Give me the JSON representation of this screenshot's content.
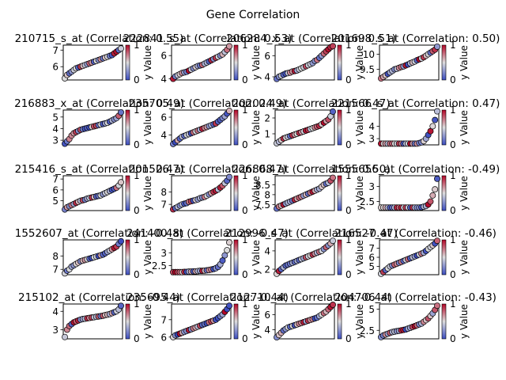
{
  "figure": {
    "suptitle": "Gene Correlation"
  },
  "colorbar": {
    "label": "y Value",
    "ticks": [
      "0",
      "1"
    ]
  },
  "chart_data": [
    {
      "type": "scatter",
      "title": "210715_s_at (Correlation: 0.55)",
      "yticks": [
        6,
        7
      ],
      "ylim": [
        5.2,
        7.3
      ],
      "y": [
        5.3,
        5.5,
        5.6,
        5.7,
        5.8,
        5.9,
        5.95,
        6.0,
        6.05,
        6.1,
        6.15,
        6.2,
        6.25,
        6.3,
        6.35,
        6.4,
        6.45,
        6.5,
        6.55,
        6.6,
        6.65,
        6.7,
        6.8,
        6.9,
        7.0,
        7.1
      ]
    },
    {
      "type": "scatter",
      "title": "222841_s_at (Correlation: 0.53)",
      "yticks": [
        4,
        6
      ],
      "ylim": [
        3.9,
        6.9
      ],
      "y": [
        4.0,
        4.2,
        4.3,
        4.4,
        4.5,
        4.55,
        4.6,
        4.7,
        4.8,
        4.9,
        5.0,
        5.1,
        5.15,
        5.2,
        5.3,
        5.4,
        5.5,
        5.6,
        5.7,
        5.8,
        5.9,
        6.0,
        6.1,
        6.3,
        6.5,
        6.8
      ]
    },
    {
      "type": "scatter",
      "title": "206284_x_at (Correlation: 0.51)",
      "yticks": [
        4,
        6
      ],
      "ylim": [
        3.7,
        7.0
      ],
      "y": [
        3.8,
        4.0,
        4.1,
        4.2,
        4.3,
        4.35,
        4.4,
        4.5,
        4.55,
        4.6,
        4.7,
        4.8,
        4.9,
        5.0,
        5.1,
        5.2,
        5.3,
        5.5,
        5.6,
        5.8,
        6.0,
        6.2,
        6.4,
        6.6,
        6.8,
        6.9
      ]
    },
    {
      "type": "scatter",
      "title": "201698_s_at (Correlation: 0.50)",
      "yticks": [
        9.5,
        10.0
      ],
      "ylim": [
        9.15,
        10.3
      ],
      "y": [
        9.2,
        9.25,
        9.3,
        9.35,
        9.4,
        9.45,
        9.5,
        9.52,
        9.55,
        9.58,
        9.6,
        9.63,
        9.66,
        9.7,
        9.73,
        9.76,
        9.8,
        9.83,
        9.86,
        9.9,
        9.95,
        10.0,
        10.05,
        10.1,
        10.15,
        10.25
      ]
    },
    {
      "type": "scatter",
      "title": "216883_x_at (Correlation: 0.49)",
      "yticks": [
        3,
        4,
        5
      ],
      "ylim": [
        2.6,
        5.6
      ],
      "y": [
        2.7,
        2.9,
        3.1,
        3.4,
        3.6,
        3.7,
        3.8,
        3.9,
        3.95,
        4.0,
        4.05,
        4.1,
        4.15,
        4.2,
        4.25,
        4.3,
        4.35,
        4.4,
        4.45,
        4.5,
        4.6,
        4.7,
        4.8,
        4.9,
        5.1,
        5.4
      ]
    },
    {
      "type": "scatter",
      "title": "235705_at (Correlation: 0.49)",
      "yticks": [
        4,
        6
      ],
      "ylim": [
        2.9,
        6.8
      ],
      "y": [
        3.0,
        3.2,
        3.4,
        3.6,
        3.8,
        3.9,
        4.0,
        4.1,
        4.2,
        4.3,
        4.4,
        4.5,
        4.6,
        4.7,
        4.8,
        4.9,
        5.0,
        5.1,
        5.2,
        5.3,
        5.5,
        5.7,
        5.9,
        6.1,
        6.4,
        6.7
      ]
    },
    {
      "type": "scatter",
      "title": "202024_at (Correlation: 0.47)",
      "yticks": [
        1,
        2
      ],
      "ylim": [
        0.3,
        2.5
      ],
      "y": [
        0.4,
        0.5,
        0.6,
        0.7,
        0.75,
        0.8,
        0.85,
        0.9,
        0.95,
        1.0,
        1.05,
        1.1,
        1.15,
        1.2,
        1.25,
        1.3,
        1.35,
        1.4,
        1.45,
        1.5,
        1.6,
        1.7,
        1.8,
        1.9,
        2.1,
        2.4
      ]
    },
    {
      "type": "scatter",
      "title": "221566_s_at (Correlation: 0.47)",
      "yticks": [
        3,
        4
      ],
      "ylim": [
        2.5,
        5.3
      ],
      "y": [
        2.6,
        2.6,
        2.6,
        2.6,
        2.6,
        2.6,
        2.6,
        2.6,
        2.6,
        2.6,
        2.6,
        2.6,
        2.6,
        2.6,
        2.6,
        2.6,
        2.6,
        2.65,
        2.7,
        2.8,
        3.0,
        3.3,
        3.6,
        4.0,
        4.5,
        5.2
      ]
    },
    {
      "type": "scatter",
      "title": "215416_s_at (Correlation: 0.47)",
      "yticks": [
        5,
        6,
        7
      ],
      "ylim": [
        4.1,
        7.3
      ],
      "y": [
        4.2,
        4.4,
        4.5,
        4.6,
        4.7,
        4.8,
        4.9,
        5.0,
        5.05,
        5.1,
        5.2,
        5.25,
        5.3,
        5.35,
        5.4,
        5.45,
        5.5,
        5.6,
        5.7,
        5.8,
        5.9,
        6.0,
        6.1,
        6.2,
        6.4,
        6.7
      ]
    },
    {
      "type": "scatter",
      "title": "201526_at (Correlation: 0.47)",
      "yticks": [
        7,
        8
      ],
      "ylim": [
        6.5,
        9.3
      ],
      "y": [
        6.6,
        6.7,
        6.8,
        6.9,
        7.0,
        7.05,
        7.1,
        7.2,
        7.25,
        7.3,
        7.35,
        7.4,
        7.5,
        7.55,
        7.6,
        7.7,
        7.8,
        7.9,
        8.0,
        8.1,
        8.2,
        8.35,
        8.5,
        8.7,
        8.9,
        9.2
      ]
    },
    {
      "type": "scatter",
      "title": "226868_at (Correlation: 0.50)",
      "yticks": [
        7.5,
        8.0,
        8.5
      ],
      "ylim": [
        7.2,
        8.95
      ],
      "y": [
        7.3,
        7.4,
        7.45,
        7.5,
        7.55,
        7.6,
        7.65,
        7.7,
        7.75,
        7.8,
        7.85,
        7.9,
        7.95,
        8.0,
        8.05,
        8.1,
        8.15,
        8.2,
        8.25,
        8.3,
        8.4,
        8.5,
        8.55,
        8.6,
        8.7,
        8.85
      ]
    },
    {
      "type": "scatter",
      "title": "1555656_at (Correlation: -0.49)",
      "yticks": [
        2.5,
        3.0
      ],
      "ylim": [
        2.2,
        3.35
      ],
      "y": [
        2.3,
        2.3,
        2.3,
        2.3,
        2.3,
        2.3,
        2.3,
        2.3,
        2.3,
        2.3,
        2.3,
        2.3,
        2.3,
        2.3,
        2.3,
        2.3,
        2.3,
        2.3,
        2.31,
        2.33,
        2.35,
        2.4,
        2.5,
        2.7,
        2.9,
        3.25
      ]
    },
    {
      "type": "scatter",
      "title": "1552607_at (Correlation: -0.48)",
      "yticks": [
        7,
        8
      ],
      "ylim": [
        6.6,
        9.2
      ],
      "y": [
        6.7,
        6.9,
        7.0,
        7.2,
        7.3,
        7.4,
        7.5,
        7.6,
        7.65,
        7.7,
        7.75,
        7.8,
        7.85,
        7.9,
        7.95,
        8.0,
        8.05,
        8.1,
        8.2,
        8.3,
        8.4,
        8.5,
        8.6,
        8.7,
        8.9,
        9.1
      ]
    },
    {
      "type": "scatter",
      "title": "241400_at (Correlation: -0.47)",
      "yticks": [
        2.5,
        3.0
      ],
      "ylim": [
        2.15,
        3.5
      ],
      "y": [
        2.25,
        2.25,
        2.25,
        2.25,
        2.25,
        2.26,
        2.26,
        2.27,
        2.27,
        2.28,
        2.28,
        2.29,
        2.3,
        2.3,
        2.31,
        2.32,
        2.33,
        2.35,
        2.37,
        2.4,
        2.45,
        2.55,
        2.7,
        2.9,
        3.1,
        3.4
      ]
    },
    {
      "type": "scatter",
      "title": "212996_s_at (Correlation: -0.47)",
      "yticks": [
        2,
        4
      ],
      "ylim": [
        1.4,
        5.2
      ],
      "y": [
        1.5,
        1.8,
        2.0,
        2.2,
        2.4,
        2.5,
        2.6,
        2.7,
        2.8,
        2.9,
        3.0,
        3.1,
        3.2,
        3.3,
        3.4,
        3.5,
        3.6,
        3.7,
        3.8,
        3.9,
        4.0,
        4.2,
        4.4,
        4.6,
        4.8,
        5.1
      ]
    },
    {
      "type": "scatter",
      "title": "216527_at (Correlation: -0.46)",
      "yticks": [
        5,
        6,
        7
      ],
      "ylim": [
        4.1,
        7.9
      ],
      "y": [
        4.2,
        4.4,
        4.6,
        4.8,
        5.0,
        5.1,
        5.2,
        5.3,
        5.4,
        5.5,
        5.6,
        5.7,
        5.8,
        5.9,
        6.0,
        6.1,
        6.2,
        6.3,
        6.4,
        6.5,
        6.7,
        6.9,
        7.1,
        7.3,
        7.5,
        7.8
      ]
    },
    {
      "type": "scatter",
      "title": "215102_at (Correlation: -0.44)",
      "yticks": [
        3,
        4
      ],
      "ylim": [
        2.5,
        4.4
      ],
      "y": [
        2.6,
        3.0,
        3.2,
        3.3,
        3.4,
        3.45,
        3.5,
        3.55,
        3.58,
        3.6,
        3.62,
        3.64,
        3.66,
        3.68,
        3.7,
        3.72,
        3.74,
        3.76,
        3.8,
        3.82,
        3.85,
        3.9,
        3.95,
        4.0,
        4.1,
        4.3
      ]
    },
    {
      "type": "scatter",
      "title": "235695_at (Correlation: -0.44)",
      "yticks": [
        6,
        7
      ],
      "ylim": [
        5.9,
        7.9
      ],
      "y": [
        6.0,
        6.1,
        6.15,
        6.2,
        6.25,
        6.3,
        6.35,
        6.4,
        6.45,
        6.5,
        6.55,
        6.6,
        6.65,
        6.7,
        6.75,
        6.8,
        6.85,
        6.9,
        6.95,
        7.0,
        7.1,
        7.2,
        7.3,
        7.45,
        7.6,
        7.8
      ]
    },
    {
      "type": "scatter",
      "title": "212710_at (Correlation: -0.44)",
      "yticks": [
        4,
        6
      ],
      "ylim": [
        2.8,
        7.4
      ],
      "y": [
        3.0,
        3.3,
        3.6,
        3.9,
        4.1,
        4.3,
        4.4,
        4.5,
        4.6,
        4.7,
        4.8,
        4.9,
        5.0,
        5.1,
        5.2,
        5.3,
        5.4,
        5.5,
        5.6,
        5.8,
        6.0,
        6.2,
        6.4,
        6.7,
        7.0,
        7.3
      ]
    },
    {
      "type": "scatter",
      "title": "204706_at (Correlation: -0.43)",
      "yticks": [
        2.5,
        5.0
      ],
      "ylim": [
        1.5,
        5.6
      ],
      "y": [
        1.7,
        1.9,
        2.0,
        2.1,
        2.2,
        2.3,
        2.35,
        2.4,
        2.45,
        2.5,
        2.55,
        2.6,
        2.7,
        2.8,
        2.9,
        3.0,
        3.1,
        3.2,
        3.3,
        3.5,
        3.7,
        3.9,
        4.2,
        4.5,
        4.9,
        5.4
      ]
    }
  ]
}
